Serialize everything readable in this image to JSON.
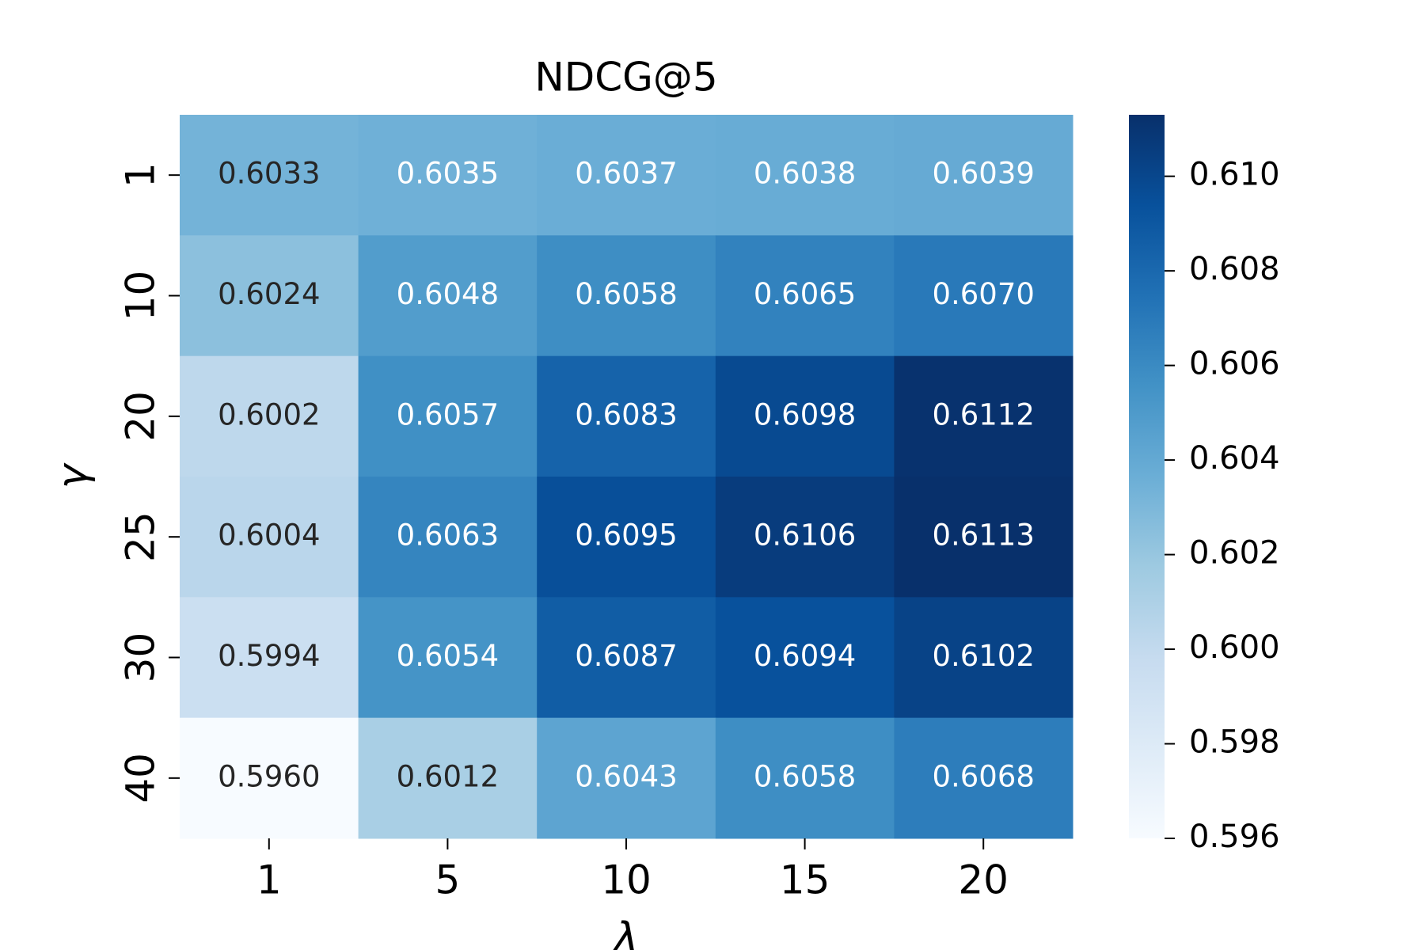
{
  "chart_data": {
    "type": "heatmap",
    "title": "NDCG@5",
    "x_label": "λ",
    "y_label": "γ",
    "categories": [
      "1",
      "5",
      "10",
      "15",
      "20"
    ],
    "rows": [
      "1",
      "10",
      "20",
      "25",
      "30",
      "40"
    ],
    "values": [
      [
        0.6033,
        0.6035,
        0.6037,
        0.6038,
        0.6039
      ],
      [
        0.6024,
        0.6048,
        0.6058,
        0.6065,
        0.607
      ],
      [
        0.6002,
        0.6057,
        0.6083,
        0.6098,
        0.6112
      ],
      [
        0.6004,
        0.6063,
        0.6095,
        0.6106,
        0.6113
      ],
      [
        0.5994,
        0.6054,
        0.6087,
        0.6094,
        0.6102
      ],
      [
        0.596,
        0.6012,
        0.6043,
        0.6058,
        0.6068
      ]
    ],
    "value_labels": [
      [
        "0.6033",
        "0.6035",
        "0.6037",
        "0.6038",
        "0.6039"
      ],
      [
        "0.6024",
        "0.6048",
        "0.6058",
        "0.6065",
        "0.6070"
      ],
      [
        "0.6002",
        "0.6057",
        "0.6083",
        "0.6098",
        "0.6112"
      ],
      [
        "0.6004",
        "0.6063",
        "0.6095",
        "0.6106",
        "0.6113"
      ],
      [
        "0.5994",
        "0.6054",
        "0.6087",
        "0.6094",
        "0.6102"
      ],
      [
        "0.5960",
        "0.6012",
        "0.6043",
        "0.6058",
        "0.6068"
      ]
    ],
    "colormap": "Blues",
    "clim": [
      0.596,
      0.6113
    ],
    "cticks": [
      0.596,
      0.598,
      {
        "value": 0.6,
        "label": "0.600"
      },
      0.602,
      0.604,
      0.606,
      0.608,
      {
        "value": 0.61,
        "label": "0.610"
      }
    ]
  }
}
